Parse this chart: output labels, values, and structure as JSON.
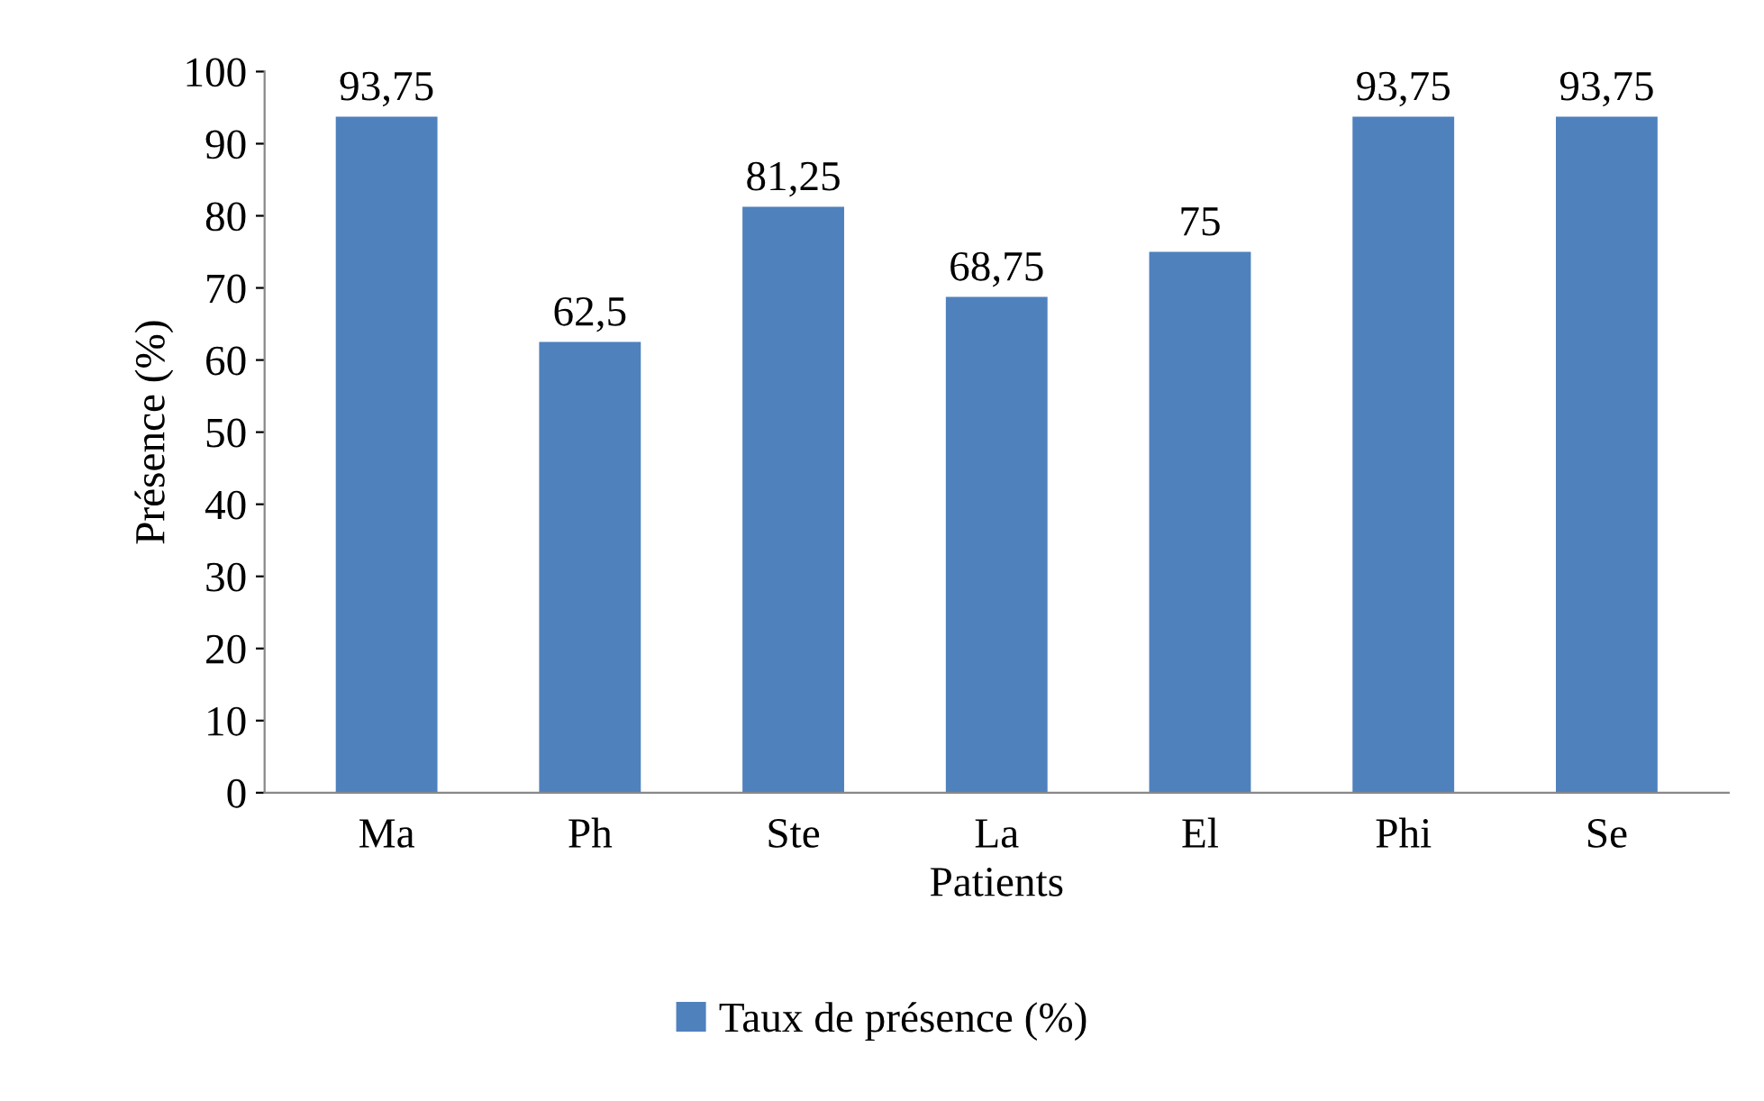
{
  "chart_data": {
    "type": "bar",
    "xlabel": "Patients",
    "ylabel": "Présence (%)",
    "categories": [
      "Ma",
      "Ph",
      "Ste",
      "La",
      "El",
      "Phi",
      "Se"
    ],
    "series": [
      {
        "name": "Taux de présence (%)",
        "color": "#4f81bd",
        "values": [
          93.75,
          62.5,
          81.25,
          68.75,
          75,
          93.75,
          93.75
        ],
        "value_labels": [
          "93,75",
          "62,5",
          "81,25",
          "68,75",
          "75",
          "93,75",
          "93,75"
        ]
      }
    ],
    "ylim": [
      0,
      100
    ],
    "yticks": [
      0,
      10,
      20,
      30,
      40,
      50,
      60,
      70,
      80,
      90,
      100
    ],
    "grid": false,
    "legend": "bottom"
  }
}
